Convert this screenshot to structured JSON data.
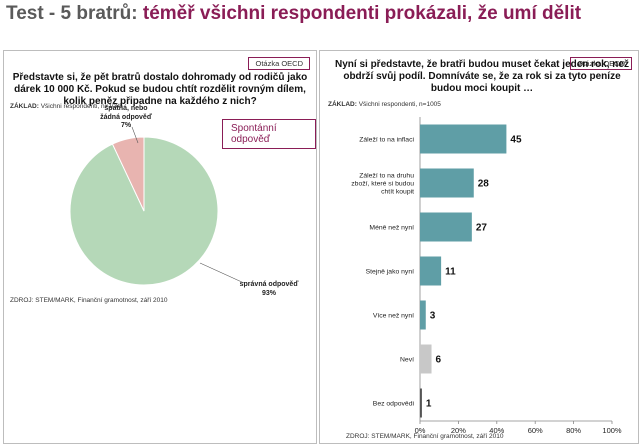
{
  "title": {
    "prefix": "Test - 5 bratrů:",
    "main": "téměř všichni respondenti prokázali, že umí dělit"
  },
  "left_panel": {
    "badge": "Otázka OECD",
    "question": "Představte si, že pět bratrů dostalo dohromady od rodičů jako dárek 10 000 Kč. Pokud se budou chtít rozdělit rovným dílem, kolik peněz připadne na každého z nich?",
    "base_label": "ZÁKLAD:",
    "base_text": "Všichni respondenti, n=1005",
    "spontaneous_label": "Spontánní odpověď",
    "source": "ZDROJ: STEM/MARK, Finanční gramotnost, září 2010"
  },
  "right_panel": {
    "badge": "Otázka OECD",
    "question": "Nyní si představte, že bratři budou muset čekat jeden rok, než obdrží svůj podíl. Domníváte se, že za rok si za tyto peníze budou moci koupit …",
    "base_label": "ZÁKLAD:",
    "base_text": "Všichni respondenti, n=1005",
    "source": "ZDROJ: STEM/MARK, Finanční gramotnost, září 2010"
  },
  "colors": {
    "title_accent": "#8a1d56",
    "pie_correct": "#b5d8b8",
    "pie_wrong": "#e8b4b0",
    "bar_teal": "#5f9ea6",
    "bar_grey": "#c8c8c8",
    "bar_dark": "#555555"
  },
  "chart_data": [
    {
      "type": "pie",
      "slices": [
        {
          "label": "správná odpověď",
          "value": 93,
          "value_label": "93%",
          "color": "#b5d8b8"
        },
        {
          "label": "špatná, nebo žádná odpověď",
          "value": 7,
          "value_label": "7%",
          "color": "#e8b4b0"
        }
      ]
    },
    {
      "type": "bar",
      "orientation": "horizontal",
      "categories": [
        "Záleží to na inflaci",
        "Záleží to na druhu zboží, které si budou chtít koupit",
        "Méně než nyní",
        "Stejně jako nyní",
        "Více než nyní",
        "Neví",
        "Bez odpovědi"
      ],
      "values": [
        45,
        28,
        27,
        11,
        3,
        6,
        1
      ],
      "bar_colors": [
        "#5f9ea6",
        "#5f9ea6",
        "#5f9ea6",
        "#5f9ea6",
        "#5f9ea6",
        "#c8c8c8",
        "#555555"
      ],
      "xlim": [
        0,
        100
      ],
      "x_ticks": [
        "0%",
        "20%",
        "40%",
        "60%",
        "80%",
        "100%"
      ],
      "grid": false
    }
  ]
}
